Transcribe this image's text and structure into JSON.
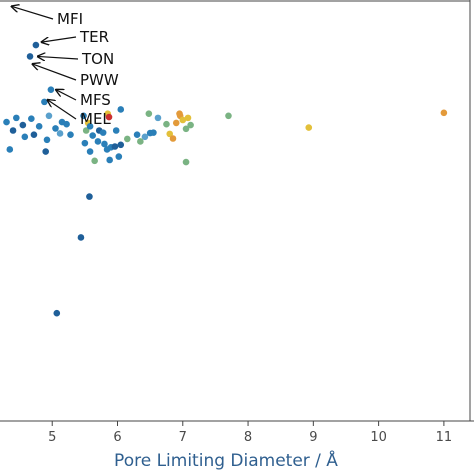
{
  "chart_data": {
    "type": "scatter",
    "title": "",
    "xlabel": "Pore Limiting Diameter / Å",
    "ylabel": "",
    "xlim": [
      4.2,
      11.4
    ],
    "ylim": [
      0,
      1
    ],
    "x_ticks": [
      "5",
      "6",
      "7",
      "8",
      "9",
      "10",
      "11"
    ],
    "grid": false,
    "annotations": [
      {
        "text": "MFI",
        "x": 4.3,
        "y": 0.985
      },
      {
        "text": "TER",
        "x": 4.76,
        "y": 0.9
      },
      {
        "text": "TON",
        "x": 4.7,
        "y": 0.866
      },
      {
        "text": "PWW",
        "x": 4.62,
        "y": 0.848
      },
      {
        "text": "MFS",
        "x": 4.98,
        "y": 0.787
      },
      {
        "text": "MEL",
        "x": 4.85,
        "y": 0.763
      }
    ],
    "points": [
      {
        "x": 4.75,
        "y": 0.893,
        "c": "#1f5f99"
      },
      {
        "x": 4.66,
        "y": 0.866,
        "c": "#1f5f99"
      },
      {
        "x": 4.88,
        "y": 0.758,
        "c": "#2a7fb8"
      },
      {
        "x": 4.98,
        "y": 0.787,
        "c": "#2a7fb8"
      },
      {
        "x": 4.3,
        "y": 0.71,
        "c": "#2a7fb8"
      },
      {
        "x": 4.45,
        "y": 0.72,
        "c": "#2a7fb8"
      },
      {
        "x": 4.55,
        "y": 0.703,
        "c": "#1f5f99"
      },
      {
        "x": 4.68,
        "y": 0.718,
        "c": "#2a7fb8"
      },
      {
        "x": 4.8,
        "y": 0.7,
        "c": "#2a7fb8"
      },
      {
        "x": 4.95,
        "y": 0.725,
        "c": "#5aa0cc"
      },
      {
        "x": 5.05,
        "y": 0.695,
        "c": "#2a7fb8"
      },
      {
        "x": 5.15,
        "y": 0.71,
        "c": "#2a7fb8"
      },
      {
        "x": 4.4,
        "y": 0.69,
        "c": "#1f5f99"
      },
      {
        "x": 4.58,
        "y": 0.675,
        "c": "#2a7fb8"
      },
      {
        "x": 4.72,
        "y": 0.68,
        "c": "#1f5f99"
      },
      {
        "x": 4.92,
        "y": 0.668,
        "c": "#2a7fb8"
      },
      {
        "x": 5.12,
        "y": 0.683,
        "c": "#5aa0cc"
      },
      {
        "x": 4.35,
        "y": 0.645,
        "c": "#2a7fb8"
      },
      {
        "x": 4.9,
        "y": 0.64,
        "c": "#1f5f99"
      },
      {
        "x": 5.22,
        "y": 0.705,
        "c": "#2a7fb8"
      },
      {
        "x": 5.28,
        "y": 0.68,
        "c": "#2a7fb8"
      },
      {
        "x": 5.48,
        "y": 0.725,
        "c": "#2a7fb8"
      },
      {
        "x": 5.55,
        "y": 0.708,
        "c": "#e3c03a"
      },
      {
        "x": 5.52,
        "y": 0.69,
        "c": "#7ab383"
      },
      {
        "x": 5.58,
        "y": 0.7,
        "c": "#2a7fb8"
      },
      {
        "x": 5.62,
        "y": 0.678,
        "c": "#2a7fb8"
      },
      {
        "x": 5.5,
        "y": 0.66,
        "c": "#2a7fb8"
      },
      {
        "x": 5.58,
        "y": 0.64,
        "c": "#2a7fb8"
      },
      {
        "x": 5.65,
        "y": 0.618,
        "c": "#7ab383"
      },
      {
        "x": 5.7,
        "y": 0.664,
        "c": "#2a7fb8"
      },
      {
        "x": 5.72,
        "y": 0.69,
        "c": "#1f5f99"
      },
      {
        "x": 5.78,
        "y": 0.685,
        "c": "#2a7fb8"
      },
      {
        "x": 5.85,
        "y": 0.73,
        "c": "#e3c03a"
      },
      {
        "x": 5.87,
        "y": 0.722,
        "c": "#cc3030"
      },
      {
        "x": 5.8,
        "y": 0.658,
        "c": "#2a7fb8"
      },
      {
        "x": 5.84,
        "y": 0.645,
        "c": "#2a7fb8"
      },
      {
        "x": 5.9,
        "y": 0.65,
        "c": "#2a7fb8"
      },
      {
        "x": 5.96,
        "y": 0.652,
        "c": "#1f5f99"
      },
      {
        "x": 6.05,
        "y": 0.656,
        "c": "#1f5f99"
      },
      {
        "x": 5.98,
        "y": 0.69,
        "c": "#2a7fb8"
      },
      {
        "x": 6.05,
        "y": 0.74,
        "c": "#2a7fb8"
      },
      {
        "x": 5.88,
        "y": 0.62,
        "c": "#2a7fb8"
      },
      {
        "x": 6.02,
        "y": 0.628,
        "c": "#2a7fb8"
      },
      {
        "x": 6.15,
        "y": 0.67,
        "c": "#7ab383"
      },
      {
        "x": 6.3,
        "y": 0.68,
        "c": "#2a7fb8"
      },
      {
        "x": 6.42,
        "y": 0.675,
        "c": "#5aa0cc"
      },
      {
        "x": 6.5,
        "y": 0.684,
        "c": "#2a7fb8"
      },
      {
        "x": 6.35,
        "y": 0.664,
        "c": "#7ab383"
      },
      {
        "x": 6.48,
        "y": 0.73,
        "c": "#7ab383"
      },
      {
        "x": 6.62,
        "y": 0.72,
        "c": "#5aa0cc"
      },
      {
        "x": 6.55,
        "y": 0.685,
        "c": "#2a7fb8"
      },
      {
        "x": 6.75,
        "y": 0.705,
        "c": "#7ab383"
      },
      {
        "x": 6.8,
        "y": 0.682,
        "c": "#e3c03a"
      },
      {
        "x": 6.85,
        "y": 0.671,
        "c": "#e39a3a"
      },
      {
        "x": 6.9,
        "y": 0.708,
        "c": "#e39a3a"
      },
      {
        "x": 6.95,
        "y": 0.73,
        "c": "#e39a3a"
      },
      {
        "x": 6.96,
        "y": 0.725,
        "c": "#e39a3a"
      },
      {
        "x": 7.05,
        "y": 0.694,
        "c": "#7ab383"
      },
      {
        "x": 7.0,
        "y": 0.715,
        "c": "#e3c03a"
      },
      {
        "x": 7.08,
        "y": 0.72,
        "c": "#e3c03a"
      },
      {
        "x": 7.12,
        "y": 0.703,
        "c": "#7ab383"
      },
      {
        "x": 7.05,
        "y": 0.615,
        "c": "#7ab383"
      },
      {
        "x": 7.7,
        "y": 0.725,
        "c": "#7ab383"
      },
      {
        "x": 8.93,
        "y": 0.697,
        "c": "#e3c03a"
      },
      {
        "x": 11.0,
        "y": 0.732,
        "c": "#e39a3a"
      },
      {
        "x": 5.57,
        "y": 0.533,
        "c": "#1f5f99"
      },
      {
        "x": 5.44,
        "y": 0.436,
        "c": "#1f5f99"
      },
      {
        "x": 5.07,
        "y": 0.256,
        "c": "#1f5f99"
      }
    ]
  }
}
